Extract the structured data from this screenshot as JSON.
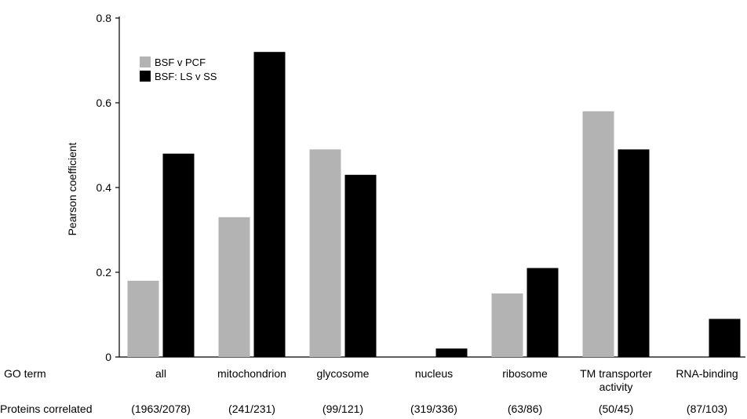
{
  "chart_data": {
    "type": "bar",
    "categories": [
      "all",
      "mitochondrion",
      "glycosome",
      "nucleus",
      "ribosome",
      "TM transporter activity",
      "RNA-binding"
    ],
    "category_lines": [
      [
        "all"
      ],
      [
        "mitochondrion"
      ],
      [
        "glycosome"
      ],
      [
        "nucleus"
      ],
      [
        "ribosome"
      ],
      [
        "TM transporter",
        "activity"
      ],
      [
        "RNA-binding"
      ]
    ],
    "proteins_correlated": [
      "(1963/2078)",
      "(241/231)",
      "(99/121)",
      "(319/336)",
      "(63/86)",
      "(50/45)",
      "(87/103)"
    ],
    "row_labels": {
      "go_term": "GO term",
      "proteins": "Proteins correlated"
    },
    "series": [
      {
        "name": "BSF v PCF",
        "color": "#b3b3b3",
        "values": [
          0.18,
          0.33,
          0.49,
          0.0,
          0.15,
          0.58,
          0.0
        ]
      },
      {
        "name": "BSF: LS v SS",
        "color": "#000000",
        "values": [
          0.48,
          0.72,
          0.43,
          0.02,
          0.21,
          0.49,
          0.09
        ]
      }
    ],
    "ylabel": "Pearson coefficient",
    "ylim": [
      0,
      0.8
    ],
    "yticks": [
      0,
      0.2,
      0.4,
      0.6,
      0.8
    ],
    "ytick_labels": [
      "0",
      "0.2",
      "0.4",
      "0.6",
      "0.8"
    ],
    "grid": false,
    "legend_position": "top-left"
  }
}
